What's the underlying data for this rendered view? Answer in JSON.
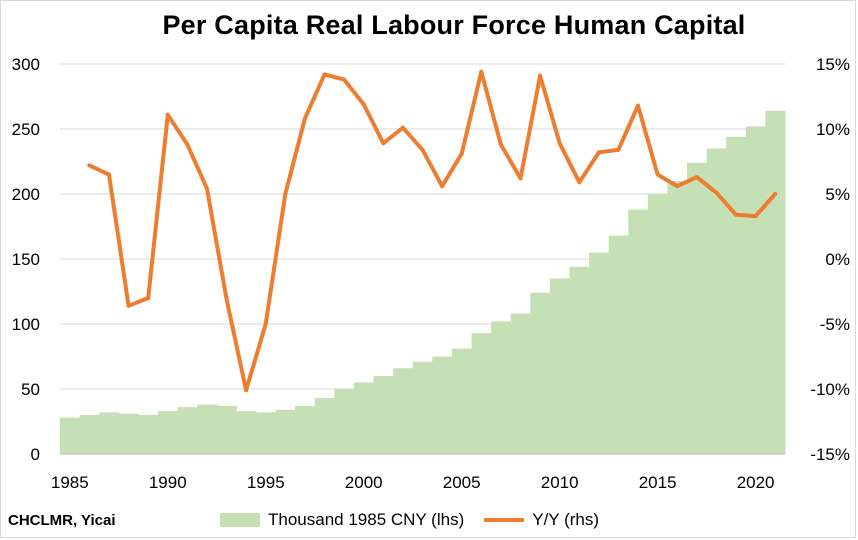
{
  "chart_data": {
    "type": "bar+line",
    "title": "Per Capita Real Labour Force Human Capital",
    "source": "CHCLMR, Yicai",
    "x": [
      1985,
      1986,
      1987,
      1988,
      1989,
      1990,
      1991,
      1992,
      1993,
      1994,
      1995,
      1996,
      1997,
      1998,
      1999,
      2000,
      2001,
      2002,
      2003,
      2004,
      2005,
      2006,
      2007,
      2008,
      2009,
      2010,
      2011,
      2012,
      2013,
      2014,
      2015,
      2016,
      2017,
      2018,
      2019,
      2020,
      2021
    ],
    "x_ticks": [
      1985,
      1990,
      1995,
      2000,
      2005,
      2010,
      2015,
      2020
    ],
    "series": [
      {
        "name": "Thousand 1985 CNY (lhs)",
        "kind": "area-bar",
        "axis": "left",
        "color": "#c5e0b4",
        "values": [
          28,
          30,
          32,
          31,
          30,
          33,
          36,
          38,
          37,
          33,
          32,
          34,
          37,
          43,
          50,
          55,
          60,
          66,
          71,
          75,
          81,
          93,
          102,
          108,
          124,
          135,
          144,
          155,
          168,
          188,
          200,
          210,
          224,
          235,
          244,
          252,
          264
        ]
      },
      {
        "name": "Y/Y (rhs)",
        "kind": "line",
        "axis": "right",
        "color": "#ed7d31",
        "values": [
          null,
          7.2,
          6.5,
          -3.6,
          -3.0,
          11.1,
          8.8,
          5.4,
          -3.1,
          -10.1,
          -5.0,
          5.0,
          10.8,
          14.2,
          13.8,
          11.9,
          8.9,
          10.1,
          8.4,
          5.6,
          8.1,
          14.4,
          8.8,
          6.2,
          14.1,
          8.9,
          5.9,
          8.2,
          8.4,
          11.8,
          6.5,
          5.6,
          6.3,
          5.1,
          3.4,
          3.3,
          5.0
        ]
      }
    ],
    "y_left": {
      "min": 0,
      "max": 300,
      "step": 50,
      "ticks": [
        "0",
        "50",
        "100",
        "150",
        "200",
        "250",
        "300"
      ]
    },
    "y_right": {
      "min": -15,
      "max": 15,
      "step": 5,
      "ticks": [
        "-15%",
        "-10%",
        "-5%",
        "0%",
        "5%",
        "10%",
        "15%"
      ]
    },
    "grid": true,
    "legend_position": "bottom"
  }
}
